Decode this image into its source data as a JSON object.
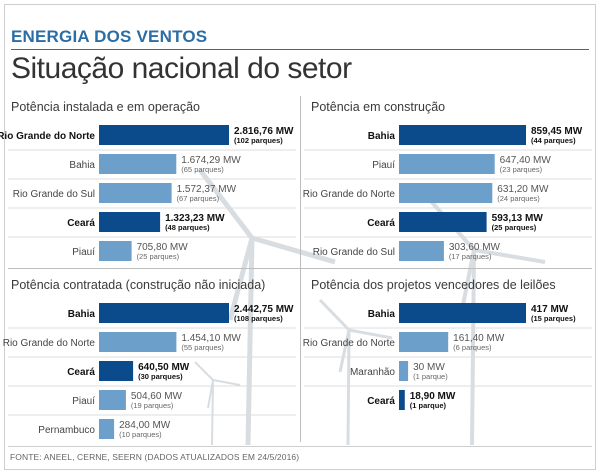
{
  "header": {
    "kicker": "ENERGIA DOS VENTOS",
    "title": "Situação nacional do setor"
  },
  "source": "FONTE: ANEEL, CERNE, SEERN (DADOS ATUALIZADOS EM 24/5/2016)",
  "colors": {
    "accent": "#2b6ea6",
    "highlight_bar": "#0b4a8b",
    "regular_bar": "#6d9fcb"
  },
  "chart_data": [
    {
      "type": "bar",
      "orientation": "horizontal",
      "title": "Potência instalada e em operação",
      "unit": "MW",
      "categories": [
        "Rio Grande do Norte",
        "Bahia",
        "Rio Grande do Sul",
        "Ceará",
        "Piauí"
      ],
      "values": [
        2816.76,
        1674.29,
        1572.37,
        1323.23,
        705.8
      ],
      "value_labels": [
        "2.816,76 MW",
        "1.674,29 MW",
        "1.572,37 MW",
        "1.323,23 MW",
        "705,80 MW"
      ],
      "sub_labels": [
        "(102 parques)",
        "(65 parques)",
        "(67 parques)",
        "(48 parques)",
        "(25 parques)"
      ],
      "highlight": [
        true,
        false,
        false,
        true,
        false
      ]
    },
    {
      "type": "bar",
      "orientation": "horizontal",
      "title": "Potência em construção",
      "unit": "MW",
      "categories": [
        "Bahia",
        "Piauí",
        "Rio Grande do Norte",
        "Ceará",
        "Rio Grande do Sul"
      ],
      "values": [
        859.45,
        647.4,
        631.2,
        593.13,
        303.6
      ],
      "value_labels": [
        "859,45 MW",
        "647,40 MW",
        "631,20 MW",
        "593,13 MW",
        "303,60 MW"
      ],
      "sub_labels": [
        "(44 parques)",
        "(23 parques)",
        "(24 parques)",
        "(25 parques)",
        "(17 parques)"
      ],
      "highlight": [
        true,
        false,
        false,
        true,
        false
      ]
    },
    {
      "type": "bar",
      "orientation": "horizontal",
      "title": "Potência contratada (construção não iniciada)",
      "unit": "MW",
      "categories": [
        "Bahia",
        "Rio Grande do Norte",
        "Ceará",
        "Piauí",
        "Pernambuco"
      ],
      "values": [
        2442.75,
        1454.1,
        640.5,
        504.6,
        284.0
      ],
      "value_labels": [
        "2.442,75 MW",
        "1.454,10 MW",
        "640,50 MW",
        "504,60 MW",
        "284,00 MW"
      ],
      "sub_labels": [
        "(108 parques)",
        "(55 parques)",
        "(30 parques)",
        "(19 parques)",
        "(10 parques)"
      ],
      "highlight": [
        true,
        false,
        true,
        false,
        false
      ]
    },
    {
      "type": "bar",
      "orientation": "horizontal",
      "title": "Potência dos projetos vencedores de leilões",
      "unit": "MW",
      "categories": [
        "Bahia",
        "Rio Grande do Norte",
        "Maranhão",
        "Ceará"
      ],
      "values": [
        417,
        161.4,
        30,
        18.9
      ],
      "value_labels": [
        "417 MW",
        "161,40 MW",
        "30 MW",
        "18,90 MW"
      ],
      "sub_labels": [
        "(15 parques)",
        "(6 parques)",
        "(1 parque)",
        "(1 parque)"
      ],
      "highlight": [
        true,
        false,
        false,
        true
      ]
    }
  ]
}
